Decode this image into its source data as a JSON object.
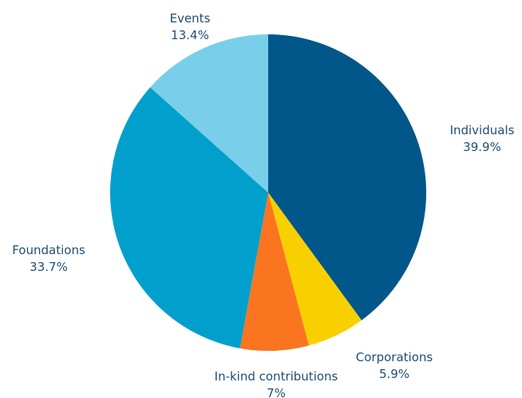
{
  "chart_data": {
    "type": "pie",
    "start_angle_deg": 0,
    "direction": "clockwise",
    "slices": [
      {
        "label": "Individuals",
        "value_label": "39.9%",
        "value": 39.9,
        "color": "#02578a"
      },
      {
        "label": "Corporations",
        "value_label": "5.9%",
        "value": 5.9,
        "color": "#f8d000"
      },
      {
        "label": "In-kind contributions",
        "value_label": "7%",
        "value": 7.0,
        "color": "#fb7520"
      },
      {
        "label": "Foundations",
        "value_label": "33.7%",
        "value": 33.7,
        "color": "#01a0cc"
      },
      {
        "label": "Events",
        "value_label": "13.4%",
        "value": 13.4,
        "color": "#79cfe9"
      }
    ]
  }
}
